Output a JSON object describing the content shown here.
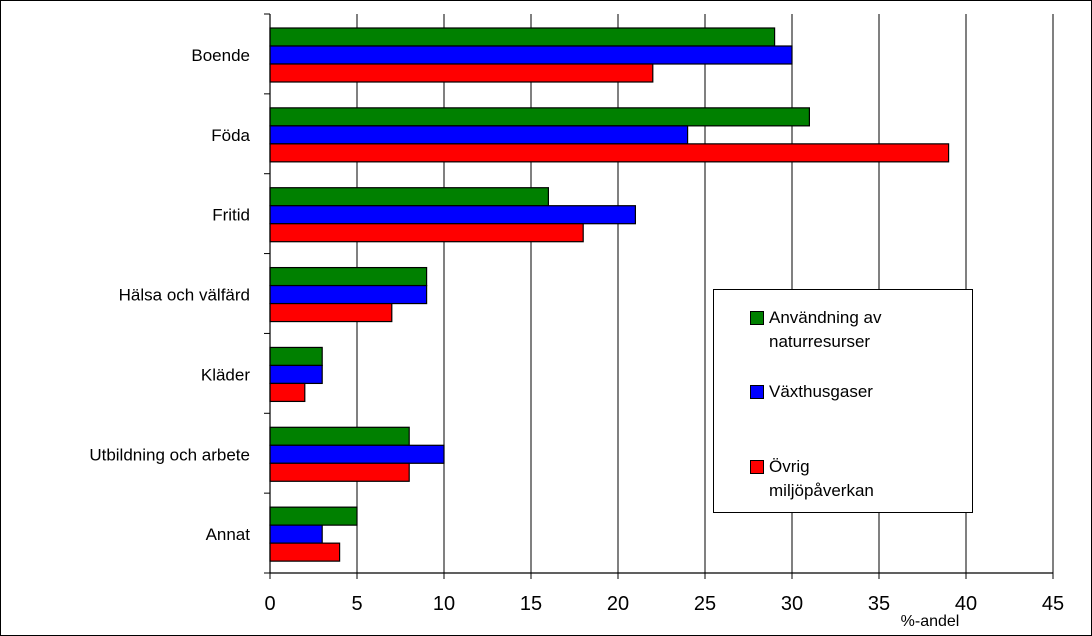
{
  "chart_data": {
    "type": "bar",
    "orientation": "horizontal",
    "categories": [
      "Boende",
      "Föda",
      "Fritid",
      "Hälsa och välfärd",
      "Kläder",
      "Utbildning och arbete",
      "Annat"
    ],
    "series": [
      {
        "name": "Användning av naturresurser",
        "color": "#008000",
        "values": [
          29,
          31,
          16,
          9,
          3,
          8,
          5
        ]
      },
      {
        "name": "Växthusgaser",
        "color": "#0000ff",
        "values": [
          30,
          24,
          21,
          9,
          3,
          10,
          3
        ]
      },
      {
        "name": "Övrig miljöpåverkan",
        "color": "#ff0000",
        "values": [
          22,
          39,
          18,
          7,
          2,
          8,
          4
        ]
      }
    ],
    "title": "",
    "xlabel": "%-andel",
    "ylabel": "",
    "xlim": [
      0,
      45
    ],
    "xticks": [
      0,
      5,
      10,
      15,
      20,
      25,
      30,
      35,
      40,
      45
    ],
    "grid": "vertical",
    "legend_position": "right"
  }
}
